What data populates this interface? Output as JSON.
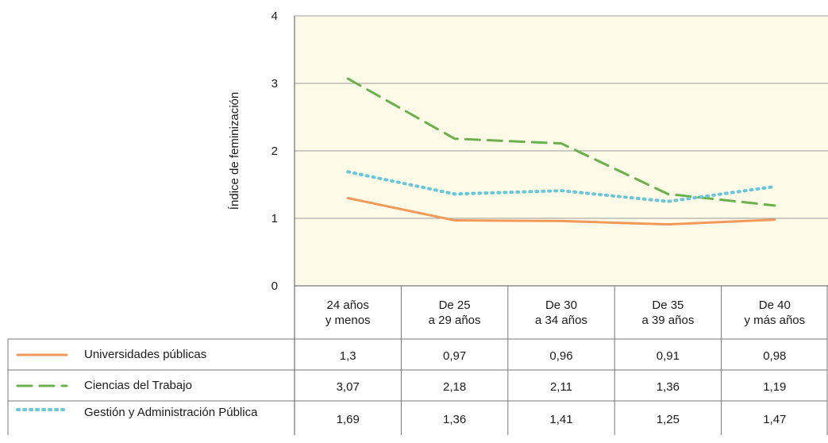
{
  "chart_data": {
    "type": "line",
    "ylabel": "Índice de feminización",
    "ylim": [
      0,
      4
    ],
    "yticks": [
      "0",
      "1",
      "2",
      "3",
      "4"
    ],
    "grid": true,
    "categories": [
      [
        "24 años",
        "y menos"
      ],
      [
        "De 25",
        "a 29 años"
      ],
      [
        "De 30",
        "a 34 años"
      ],
      [
        "De 35",
        "a 39 años"
      ],
      [
        "De 40",
        "y más años"
      ]
    ],
    "series": [
      {
        "name": "Universidades públicas",
        "style": "solid",
        "color": "#f39a5b",
        "values": [
          1.3,
          0.97,
          0.96,
          0.91,
          0.98
        ],
        "labels": [
          "1,3",
          "0,97",
          "0,96",
          "0,91",
          "0,98"
        ]
      },
      {
        "name": "Ciencias del Trabajo",
        "style": "dashed",
        "color": "#6bb04c",
        "values": [
          3.07,
          2.18,
          2.11,
          1.36,
          1.19
        ],
        "labels": [
          "3,07",
          "2,18",
          "2,11",
          "1,36",
          "1,19"
        ]
      },
      {
        "name": "Gestión y Administración Pública",
        "style": "dotted",
        "color": "#6cc5d8",
        "values": [
          1.69,
          1.36,
          1.41,
          1.25,
          1.47
        ],
        "labels": [
          "1,69",
          "1,36",
          "1,41",
          "1,25",
          "1,47"
        ]
      }
    ],
    "plot_background": "#fdfbe8",
    "grid_color": "#9a9a9a"
  }
}
